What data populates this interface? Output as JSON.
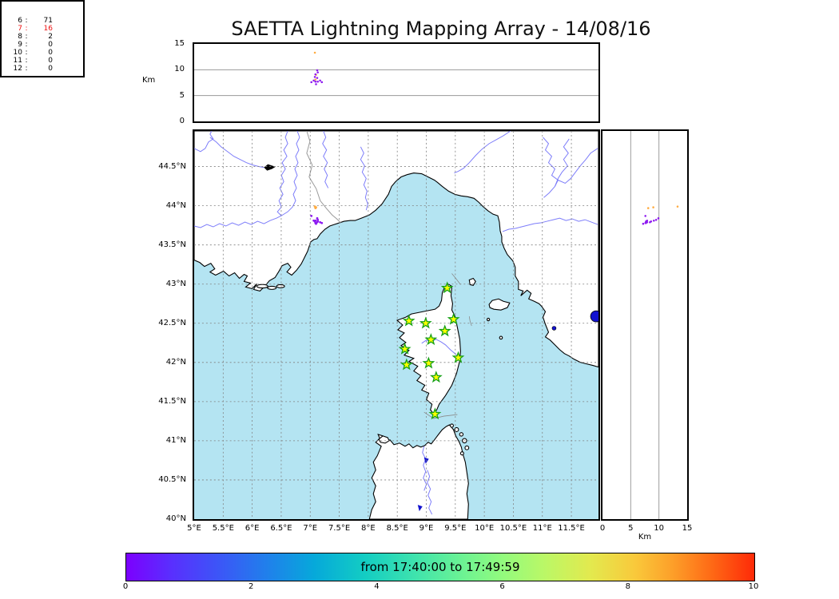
{
  "title": "SAETTA Lightning Mapping Array - 14/08/16",
  "top_panel": {
    "ylabel": "Km",
    "yticks": [
      {
        "v": 15,
        "label": "15"
      },
      {
        "v": 10,
        "label": "10"
      },
      {
        "v": 5,
        "label": "5"
      },
      {
        "v": 0,
        "label": "0"
      }
    ]
  },
  "station_table": {
    "separator": ":",
    "rows": [
      {
        "level": "6",
        "count": "71",
        "color": "#000000"
      },
      {
        "level": "7",
        "count": "16",
        "color": "#ee1111"
      },
      {
        "level": "8",
        "count": "2",
        "color": "#000000"
      },
      {
        "level": "9",
        "count": "0",
        "color": "#000000"
      },
      {
        "level": "10",
        "count": "0",
        "color": "#000000"
      },
      {
        "level": "11",
        "count": "0",
        "color": "#000000"
      },
      {
        "level": "12",
        "count": "0",
        "color": "#000000"
      }
    ]
  },
  "map_panel": {
    "lat_ticks": [
      {
        "v": 44.5,
        "label": "44.5°N"
      },
      {
        "v": 44,
        "label": "44°N"
      },
      {
        "v": 43.5,
        "label": "43.5°N"
      },
      {
        "v": 43,
        "label": "43°N"
      },
      {
        "v": 42.5,
        "label": "42.5°N"
      },
      {
        "v": 42,
        "label": "42°N"
      },
      {
        "v": 41.5,
        "label": "41.5°N"
      },
      {
        "v": 41,
        "label": "41°N"
      },
      {
        "v": 40.5,
        "label": "40.5°N"
      },
      {
        "v": 40,
        "label": "40°N"
      }
    ],
    "lon_ticks": [
      {
        "v": 5,
        "label": "5°E"
      },
      {
        "v": 5.5,
        "label": "5.5°E"
      },
      {
        "v": 6,
        "label": "6°E"
      },
      {
        "v": 6.5,
        "label": "6.5°E"
      },
      {
        "v": 7,
        "label": "7°E"
      },
      {
        "v": 7.5,
        "label": "7.5°E"
      },
      {
        "v": 8,
        "label": "8°E"
      },
      {
        "v": 8.5,
        "label": "8.5°E"
      },
      {
        "v": 9,
        "label": "9°E"
      },
      {
        "v": 9.5,
        "label": "9.5°E"
      },
      {
        "v": 10,
        "label": "10°E"
      },
      {
        "v": 10.5,
        "label": "10.5°E"
      },
      {
        "v": 11,
        "label": "11°E"
      },
      {
        "v": 11.5,
        "label": "11.5°E"
      }
    ]
  },
  "right_panel": {
    "xlabel": "Km",
    "xticks": [
      {
        "v": 0,
        "label": "0"
      },
      {
        "v": 5,
        "label": "5"
      },
      {
        "v": 10,
        "label": "10"
      },
      {
        "v": 15,
        "label": "15"
      }
    ]
  },
  "colorbar": {
    "label": "from 17:40:00 to 17:49:59",
    "ticks": [
      {
        "v": 0,
        "label": "0"
      },
      {
        "v": 2,
        "label": "2"
      },
      {
        "v": 4,
        "label": "4"
      },
      {
        "v": 6,
        "label": "6"
      },
      {
        "v": 8,
        "label": "8"
      },
      {
        "v": 10,
        "label": "10"
      }
    ]
  },
  "chart_data": {
    "type": "scatter",
    "title": "SAETTA Lightning Mapping Array - 14/08/16",
    "time_window": {
      "start": "17:40:00",
      "end": "17:49:59"
    },
    "colormap": "rainbow",
    "colorbar_axis": {
      "min": 0,
      "max": 10,
      "ticks": [
        0,
        2,
        4,
        6,
        8,
        10
      ],
      "label": "from 17:40:00 to 17:49:59"
    },
    "axes": {
      "lon_deg": [
        5,
        11.97
      ],
      "lat_deg": [
        40,
        44.95
      ],
      "alt_km": [
        0,
        15
      ]
    },
    "grid": {
      "lon_step": 0.5,
      "lat_step": 0.5,
      "alt_lines_km": [
        5,
        10
      ]
    },
    "station_counts": {
      "6": 71,
      "7": 16,
      "8": 2,
      "9": 0,
      "10": 0,
      "11": 0,
      "12": 0
    },
    "highlighted_count_row": "7",
    "palette": {
      "early": "#8d18f0",
      "late": "#ffab40"
    },
    "stations_lon_lat": [
      [
        9.36,
        42.95
      ],
      [
        8.7,
        42.53
      ],
      [
        8.99,
        42.5
      ],
      [
        9.47,
        42.55
      ],
      [
        9.32,
        42.4
      ],
      [
        9.08,
        42.29
      ],
      [
        8.63,
        42.17
      ],
      [
        9.55,
        42.06
      ],
      [
        9.04,
        41.99
      ],
      [
        8.66,
        41.97
      ],
      [
        9.17,
        41.81
      ],
      [
        9.15,
        41.34
      ]
    ],
    "sources": [
      {
        "lon": 7.08,
        "lat": 43.99,
        "alt": 13.3,
        "c": "late"
      },
      {
        "lon": 7.09,
        "lat": 43.97,
        "alt": 8.1,
        "c": "late"
      },
      {
        "lon": 7.1,
        "lat": 43.98,
        "alt": 9.0,
        "c": "late"
      },
      {
        "lon": 7.02,
        "lat": 43.87,
        "alt": 7.6,
        "c": "early"
      },
      {
        "lon": 7.12,
        "lat": 43.84,
        "alt": 9.9,
        "c": "early"
      },
      {
        "lon": 7.13,
        "lat": 43.82,
        "alt": 9.5,
        "c": "early"
      },
      {
        "lon": 7.09,
        "lat": 43.81,
        "alt": 9.1,
        "c": "early"
      },
      {
        "lon": 7.08,
        "lat": 43.8,
        "alt": 8.6,
        "c": "early"
      },
      {
        "lon": 7.12,
        "lat": 43.79,
        "alt": 8.4,
        "c": "early"
      },
      {
        "lon": 7.06,
        "lat": 43.81,
        "alt": 7.9,
        "c": "early"
      },
      {
        "lon": 7.09,
        "lat": 43.78,
        "alt": 7.7,
        "c": "early"
      },
      {
        "lon": 7.13,
        "lat": 43.8,
        "alt": 7.7,
        "c": "early"
      },
      {
        "lon": 7.17,
        "lat": 43.79,
        "alt": 7.9,
        "c": "early"
      },
      {
        "lon": 7.2,
        "lat": 43.78,
        "alt": 7.6,
        "c": "early"
      },
      {
        "lon": 7.1,
        "lat": 43.77,
        "alt": 7.2,
        "c": "early"
      }
    ]
  }
}
